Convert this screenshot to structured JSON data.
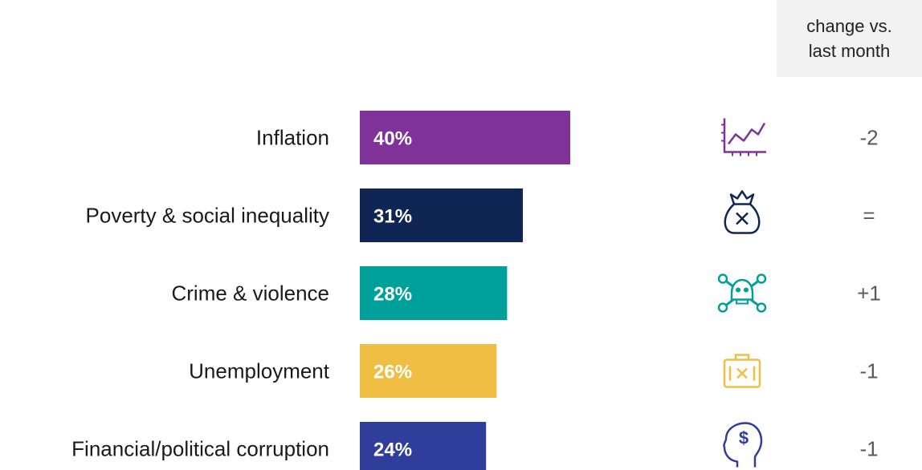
{
  "change_header": {
    "line1": "change vs.",
    "line2": "last month"
  },
  "chart_data": {
    "type": "bar",
    "orientation": "horizontal",
    "categories": [
      "Inflation",
      "Poverty & social inequality",
      "Crime & violence",
      "Unemployment",
      "Financial/political corruption"
    ],
    "values": [
      40,
      31,
      28,
      26,
      24
    ],
    "value_labels": [
      "40%",
      "31%",
      "28%",
      "26%",
      "24%"
    ],
    "change_vs_last_month": [
      "-2",
      "=",
      "+1",
      "-1",
      "-1"
    ],
    "colors": [
      "#7f3398",
      "#0f2654",
      "#00a09a",
      "#f0be42",
      "#2f3e9a"
    ],
    "icons": [
      "chart-line-icon",
      "money-bag-icon",
      "skull-crossbones-icon",
      "briefcase-icon",
      "head-dollar-icon"
    ],
    "title": "",
    "xlabel": "",
    "ylabel": "",
    "xlim": [
      0,
      40
    ],
    "grid": false
  }
}
